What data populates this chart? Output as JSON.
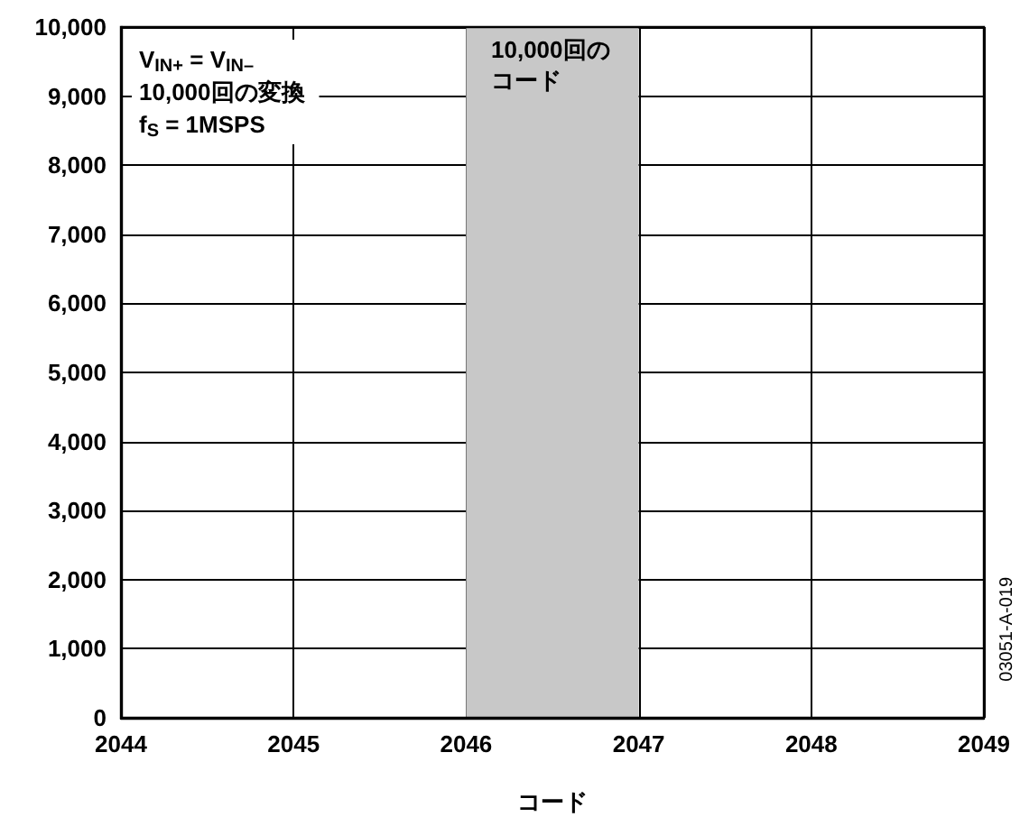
{
  "chart_data": {
    "type": "histogram",
    "xlabel": "コード",
    "bins": [
      2044,
      2045,
      2046,
      2047,
      2048,
      2049
    ],
    "values": [
      0,
      0,
      10000,
      0,
      0
    ],
    "color": "#c8c8c8",
    "xlim": [
      2044,
      2049
    ],
    "xticks": [
      2044,
      2045,
      2046,
      2047,
      2048,
      2049
    ],
    "ylim": [
      0,
      10000
    ],
    "yticks": [
      0,
      {
        "value": 1000,
        "label": "1,000"
      },
      {
        "value": 2000,
        "label": "2,000"
      },
      {
        "value": 3000,
        "label": "3,000"
      },
      {
        "value": 4000,
        "label": "4,000"
      },
      {
        "value": 5000,
        "label": "5,000"
      },
      {
        "value": 6000,
        "label": "6,000"
      },
      {
        "value": 7000,
        "label": "7,000"
      },
      {
        "value": 8000,
        "label": "8,000"
      },
      {
        "value": 9000,
        "label": "9,000"
      },
      {
        "value": 10000,
        "label": "10,000"
      }
    ],
    "grid": true,
    "annotations": [
      "V$_{IN+}$ = V$_{IN–}$\n10,000回の変換\nf$_{S}$ = 1MSPS",
      "10,000回のコード",
      "03051-A-019"
    ]
  }
}
